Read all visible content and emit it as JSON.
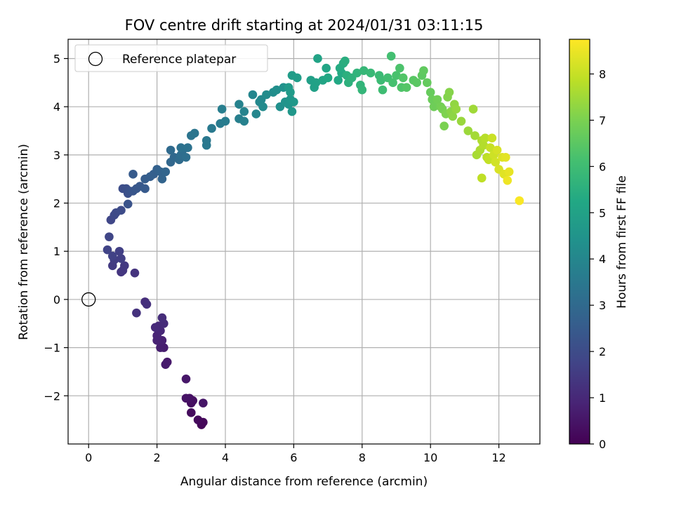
{
  "chart_data": {
    "type": "scatter",
    "title": "FOV centre drift starting at 2024/01/31 03:11:15",
    "xlabel": "Angular distance from reference (arcmin)",
    "ylabel": "Rotation from reference (arcmin)",
    "xlim": [
      -0.6,
      13.2
    ],
    "ylim": [
      -3.0,
      5.4
    ],
    "xticks": [
      0,
      2,
      4,
      6,
      8,
      10,
      12
    ],
    "yticks": [
      -2,
      -1,
      0,
      1,
      2,
      3,
      4,
      5
    ],
    "ytick_labels": [
      "−2",
      "−1",
      "0",
      "1",
      "2",
      "3",
      "4",
      "5"
    ],
    "grid": true,
    "legend": {
      "label": "Reference platepar",
      "placement": "top-left"
    },
    "reference_point": {
      "x": 0,
      "y": 0
    },
    "colorbar": {
      "label": "Hours from first FF file",
      "colormap": "viridis",
      "range": [
        0,
        8.75
      ],
      "ticks": [
        0,
        1,
        2,
        3,
        4,
        5,
        6,
        7,
        8
      ]
    },
    "points": [
      [
        3.3,
        -2.6,
        0.1
      ],
      [
        3.35,
        -2.55,
        0.15
      ],
      [
        3.2,
        -2.5,
        0.2
      ],
      [
        3.0,
        -2.35,
        0.25
      ],
      [
        3.0,
        -2.15,
        0.3
      ],
      [
        3.05,
        -2.1,
        0.35
      ],
      [
        2.95,
        -2.05,
        0.4
      ],
      [
        2.85,
        -2.05,
        0.45
      ],
      [
        3.35,
        -2.15,
        0.5
      ],
      [
        2.85,
        -1.65,
        0.55
      ],
      [
        2.3,
        -1.3,
        0.6
      ],
      [
        2.25,
        -1.35,
        0.65
      ],
      [
        2.2,
        -1.0,
        0.7
      ],
      [
        2.1,
        -1.0,
        0.75
      ],
      [
        2.15,
        -0.85,
        0.8
      ],
      [
        2.0,
        -0.85,
        0.85
      ],
      [
        2.0,
        -0.75,
        0.9
      ],
      [
        2.1,
        -0.65,
        0.95
      ],
      [
        2.05,
        -0.55,
        1.0
      ],
      [
        1.95,
        -0.58,
        1.05
      ],
      [
        2.2,
        -0.5,
        1.08
      ],
      [
        2.15,
        -0.38,
        1.12
      ],
      [
        1.65,
        -0.05,
        1.15
      ],
      [
        1.7,
        -0.1,
        1.2
      ],
      [
        1.4,
        -0.28,
        1.25
      ],
      [
        1.35,
        0.55,
        1.3
      ],
      [
        0.95,
        0.57,
        1.35
      ],
      [
        1.0,
        0.6,
        1.4
      ],
      [
        1.05,
        0.7,
        1.45
      ],
      [
        0.7,
        0.7,
        1.5
      ],
      [
        0.75,
        0.82,
        1.55
      ],
      [
        0.95,
        0.85,
        1.6
      ],
      [
        0.9,
        1.0,
        1.65
      ],
      [
        0.7,
        0.9,
        1.7
      ],
      [
        0.55,
        1.03,
        1.75
      ],
      [
        0.6,
        1.3,
        1.8
      ],
      [
        0.65,
        1.65,
        1.85
      ],
      [
        0.75,
        1.75,
        1.9
      ],
      [
        0.8,
        1.8,
        1.95
      ],
      [
        0.95,
        1.85,
        2.0
      ],
      [
        1.0,
        2.3,
        2.05
      ],
      [
        1.1,
        2.3,
        2.1
      ],
      [
        1.15,
        2.2,
        2.15
      ],
      [
        1.2,
        2.25,
        2.2
      ],
      [
        1.15,
        1.98,
        2.25
      ],
      [
        1.3,
        2.25,
        2.3
      ],
      [
        1.4,
        2.3,
        2.35
      ],
      [
        1.5,
        2.35,
        2.4
      ],
      [
        1.65,
        2.3,
        2.45
      ],
      [
        1.3,
        2.6,
        2.5
      ],
      [
        1.65,
        2.5,
        2.55
      ],
      [
        1.8,
        2.55,
        2.6
      ],
      [
        1.9,
        2.6,
        2.65
      ],
      [
        2.0,
        2.7,
        2.7
      ],
      [
        2.1,
        2.65,
        2.75
      ],
      [
        2.15,
        2.5,
        2.8
      ],
      [
        2.25,
        2.65,
        2.85
      ],
      [
        2.4,
        2.85,
        2.9
      ],
      [
        2.5,
        2.95,
        2.95
      ],
      [
        2.4,
        3.1,
        3.0
      ],
      [
        2.65,
        2.9,
        3.05
      ],
      [
        2.7,
        3.0,
        3.1
      ],
      [
        2.75,
        3.1,
        3.15
      ],
      [
        2.85,
        2.95,
        3.2
      ],
      [
        2.7,
        3.15,
        3.25
      ],
      [
        2.9,
        3.15,
        3.3
      ],
      [
        3.0,
        3.4,
        3.35
      ],
      [
        3.1,
        3.45,
        3.4
      ],
      [
        3.45,
        3.3,
        3.45
      ],
      [
        3.45,
        3.2,
        3.5
      ],
      [
        3.6,
        3.55,
        3.55
      ],
      [
        3.85,
        3.65,
        3.6
      ],
      [
        4.0,
        3.7,
        3.65
      ],
      [
        3.9,
        3.95,
        3.7
      ],
      [
        4.4,
        3.75,
        3.75
      ],
      [
        4.55,
        3.7,
        3.8
      ],
      [
        4.4,
        4.05,
        3.85
      ],
      [
        4.55,
        3.9,
        3.9
      ],
      [
        4.8,
        4.25,
        3.95
      ],
      [
        4.9,
        3.85,
        4.0
      ],
      [
        5.0,
        4.1,
        4.05
      ],
      [
        5.05,
        4.15,
        4.1
      ],
      [
        5.1,
        4.0,
        4.15
      ],
      [
        5.2,
        4.25,
        4.2
      ],
      [
        5.4,
        4.3,
        4.25
      ],
      [
        5.5,
        4.35,
        4.3
      ],
      [
        5.6,
        4.0,
        4.35
      ],
      [
        5.7,
        4.4,
        4.4
      ],
      [
        5.75,
        4.1,
        4.45
      ],
      [
        5.85,
        4.05,
        4.5
      ],
      [
        5.9,
        4.15,
        4.55
      ],
      [
        5.95,
        3.9,
        4.6
      ],
      [
        6.0,
        4.1,
        4.65
      ],
      [
        5.85,
        4.4,
        4.7
      ],
      [
        5.9,
        4.3,
        4.75
      ],
      [
        5.95,
        4.65,
        4.8
      ],
      [
        6.1,
        4.6,
        4.85
      ],
      [
        6.5,
        4.55,
        4.9
      ],
      [
        6.6,
        4.4,
        4.95
      ],
      [
        6.65,
        4.5,
        5.0
      ],
      [
        6.7,
        5.0,
        5.05
      ],
      [
        6.85,
        4.55,
        5.1
      ],
      [
        6.95,
        4.8,
        5.15
      ],
      [
        7.0,
        4.6,
        5.2
      ],
      [
        7.3,
        4.55,
        5.25
      ],
      [
        7.4,
        4.7,
        5.3
      ],
      [
        7.35,
        4.8,
        5.35
      ],
      [
        7.45,
        4.9,
        5.4
      ],
      [
        7.5,
        4.95,
        5.45
      ],
      [
        7.55,
        4.65,
        5.5
      ],
      [
        7.6,
        4.5,
        5.55
      ],
      [
        7.7,
        4.6,
        5.6
      ],
      [
        7.85,
        4.7,
        5.65
      ],
      [
        7.95,
        4.45,
        5.7
      ],
      [
        8.0,
        4.35,
        5.75
      ],
      [
        8.05,
        4.75,
        5.8
      ],
      [
        8.25,
        4.7,
        5.85
      ],
      [
        8.5,
        4.65,
        5.9
      ],
      [
        8.55,
        4.55,
        5.95
      ],
      [
        8.6,
        4.35,
        6.0
      ],
      [
        8.75,
        4.6,
        6.05
      ],
      [
        8.85,
        5.05,
        6.1
      ],
      [
        8.9,
        4.5,
        6.15
      ],
      [
        9.0,
        4.65,
        6.2
      ],
      [
        9.1,
        4.8,
        6.25
      ],
      [
        9.15,
        4.4,
        6.3
      ],
      [
        9.2,
        4.6,
        6.35
      ],
      [
        9.3,
        4.4,
        6.4
      ],
      [
        9.5,
        4.55,
        6.45
      ],
      [
        9.6,
        4.5,
        6.5
      ],
      [
        9.75,
        4.65,
        6.55
      ],
      [
        9.8,
        4.75,
        6.6
      ],
      [
        9.9,
        4.5,
        6.65
      ],
      [
        10.0,
        4.3,
        6.7
      ],
      [
        10.05,
        4.15,
        6.75
      ],
      [
        10.1,
        4.0,
        6.8
      ],
      [
        10.2,
        4.15,
        6.85
      ],
      [
        10.3,
        4.0,
        6.9
      ],
      [
        10.35,
        3.95,
        6.95
      ],
      [
        10.4,
        3.6,
        7.0
      ],
      [
        10.45,
        3.85,
        7.05
      ],
      [
        10.5,
        4.2,
        7.1
      ],
      [
        10.55,
        4.3,
        7.15
      ],
      [
        10.6,
        3.9,
        7.2
      ],
      [
        10.65,
        3.8,
        7.25
      ],
      [
        10.7,
        4.05,
        7.3
      ],
      [
        10.75,
        3.95,
        7.35
      ],
      [
        10.9,
        3.7,
        7.4
      ],
      [
        11.1,
        3.5,
        7.45
      ],
      [
        11.25,
        3.95,
        7.5
      ],
      [
        11.3,
        3.4,
        7.55
      ],
      [
        11.35,
        3.0,
        7.6
      ],
      [
        11.45,
        3.1,
        7.65
      ],
      [
        11.5,
        3.3,
        7.7
      ],
      [
        11.55,
        3.2,
        7.75
      ],
      [
        11.6,
        3.35,
        7.8
      ],
      [
        11.65,
        2.95,
        7.85
      ],
      [
        11.5,
        2.52,
        7.9
      ],
      [
        11.7,
        2.9,
        7.95
      ],
      [
        11.75,
        3.15,
        8.0
      ],
      [
        11.8,
        3.35,
        8.05
      ],
      [
        11.85,
        3.0,
        8.1
      ],
      [
        11.9,
        2.85,
        8.15
      ],
      [
        11.95,
        3.1,
        8.2
      ],
      [
        12.0,
        2.7,
        8.25
      ],
      [
        12.1,
        2.95,
        8.3
      ],
      [
        12.15,
        2.6,
        8.35
      ],
      [
        12.2,
        2.95,
        8.4
      ],
      [
        12.3,
        2.65,
        8.45
      ],
      [
        12.25,
        2.47,
        8.55
      ],
      [
        12.6,
        2.05,
        8.7
      ]
    ]
  }
}
